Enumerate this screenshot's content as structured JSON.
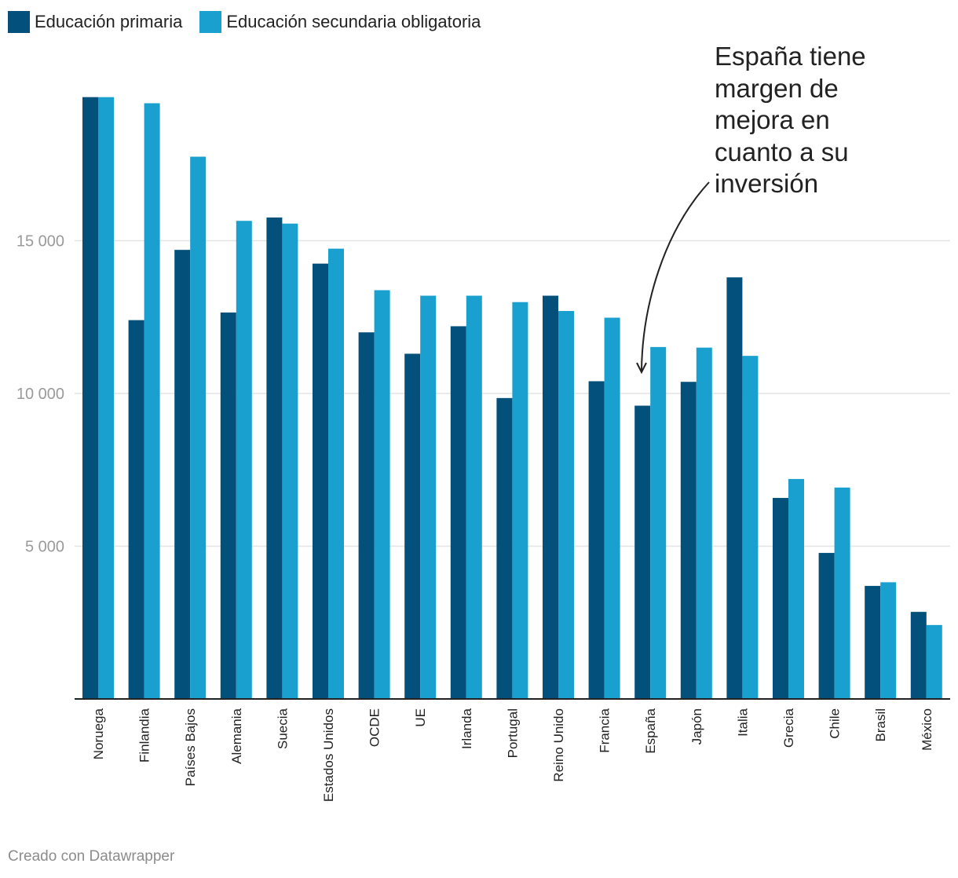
{
  "legend": [
    {
      "label": "Educación primaria",
      "color": "#03517a"
    },
    {
      "label": "Educación secundaria obligatoria",
      "color": "#1aa0cf"
    }
  ],
  "annotation": {
    "text": "España tiene margen de mejora en cuanto a su inversión"
  },
  "credit": "Creado con Datawrapper",
  "chart_data": {
    "type": "bar",
    "title": "",
    "xlabel": "",
    "ylabel": "",
    "ylim": [
      0,
      20000
    ],
    "yticks": [
      5000,
      10000,
      15000
    ],
    "ytick_labels": [
      "5 000",
      "10 000",
      "15 000"
    ],
    "grid": true,
    "legend_position": "top-left",
    "categories": [
      "Noruega",
      "Finlandia",
      "Países Bajos",
      "Alemania",
      "Suecia",
      "Estados Unidos",
      "OCDE",
      "UE",
      "Irlanda",
      "Portugal",
      "Reino Unido",
      "Francia",
      "España",
      "Japón",
      "Italia",
      "Grecia",
      "Chile",
      "Brasil",
      "México"
    ],
    "series": [
      {
        "name": "Educación primaria",
        "color": "#03517a",
        "values": [
          19700,
          12400,
          14700,
          12650,
          15760,
          14250,
          12000,
          11300,
          12200,
          9850,
          13200,
          10400,
          9600,
          10380,
          13800,
          6580,
          4780,
          3700,
          2850
        ]
      },
      {
        "name": "Educación secundaria obligatoria",
        "color": "#1aa0cf",
        "values": [
          19700,
          19500,
          17750,
          15650,
          15560,
          14740,
          13380,
          13200,
          13200,
          12990,
          12700,
          12480,
          11520,
          11500,
          11230,
          7200,
          6920,
          3820,
          2420
        ]
      }
    ]
  }
}
